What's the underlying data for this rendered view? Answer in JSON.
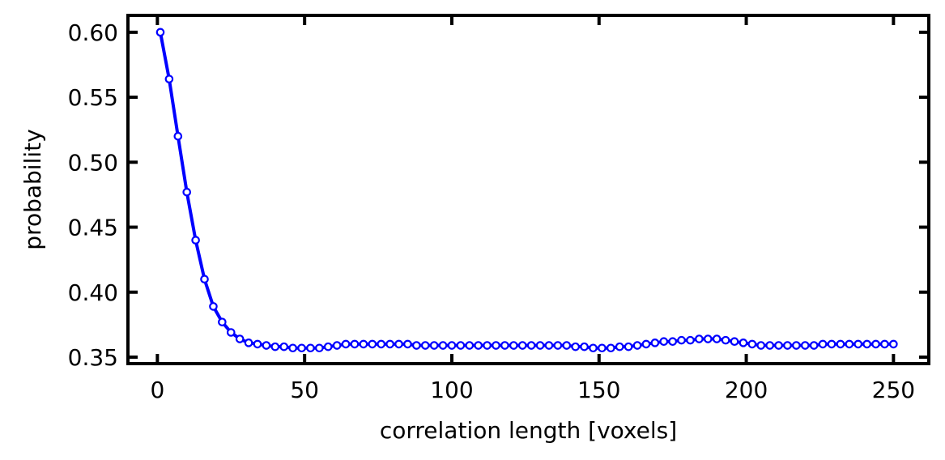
{
  "chart_data": {
    "type": "line",
    "title": "",
    "xlabel": "correlation length [voxels]",
    "ylabel": "probability",
    "xlim": [
      -10,
      262
    ],
    "ylim": [
      0.345,
      0.613
    ],
    "x_ticks": [
      0,
      50,
      100,
      150,
      200,
      250
    ],
    "y_ticks": [
      0.35,
      0.4,
      0.45,
      0.5,
      0.55,
      0.6
    ],
    "x_tick_labels": [
      "0",
      "50",
      "100",
      "150",
      "200",
      "250"
    ],
    "y_tick_labels": [
      "0.35",
      "0.40",
      "0.45",
      "0.50",
      "0.55",
      "0.60"
    ],
    "grid": false,
    "legend": "none",
    "colors": {
      "line": "#0000ff",
      "marker_fill": "#ffffff",
      "axes": "#000000"
    },
    "series": [
      {
        "x": [
          1,
          4,
          7,
          10,
          13,
          16,
          19,
          22,
          25,
          28,
          31,
          34,
          37,
          40,
          43,
          46,
          49,
          52,
          55,
          58,
          61,
          64,
          67,
          70,
          73,
          76,
          79,
          82,
          85,
          88,
          91,
          94,
          97,
          100,
          103,
          106,
          109,
          112,
          115,
          118,
          121,
          124,
          127,
          130,
          133,
          136,
          139,
          142,
          145,
          148,
          151,
          154,
          157,
          160,
          163,
          166,
          169,
          172,
          175,
          178,
          181,
          184,
          187,
          190,
          193,
          196,
          199,
          202,
          205,
          208,
          211,
          214,
          217,
          220,
          223,
          226,
          229,
          232,
          235,
          238,
          241,
          244,
          247,
          250
        ],
        "y": [
          0.6,
          0.564,
          0.52,
          0.477,
          0.44,
          0.41,
          0.389,
          0.377,
          0.369,
          0.364,
          0.361,
          0.36,
          0.359,
          0.358,
          0.358,
          0.357,
          0.357,
          0.357,
          0.357,
          0.358,
          0.359,
          0.36,
          0.36,
          0.36,
          0.36,
          0.36,
          0.36,
          0.36,
          0.36,
          0.359,
          0.359,
          0.359,
          0.359,
          0.359,
          0.359,
          0.359,
          0.359,
          0.359,
          0.359,
          0.359,
          0.359,
          0.359,
          0.359,
          0.359,
          0.359,
          0.359,
          0.359,
          0.358,
          0.358,
          0.357,
          0.357,
          0.357,
          0.358,
          0.358,
          0.359,
          0.36,
          0.361,
          0.362,
          0.362,
          0.363,
          0.363,
          0.364,
          0.364,
          0.364,
          0.363,
          0.362,
          0.361,
          0.36,
          0.359,
          0.359,
          0.359,
          0.359,
          0.359,
          0.359,
          0.359,
          0.36,
          0.36,
          0.36,
          0.36,
          0.36,
          0.36,
          0.36,
          0.36,
          0.36
        ]
      }
    ]
  }
}
